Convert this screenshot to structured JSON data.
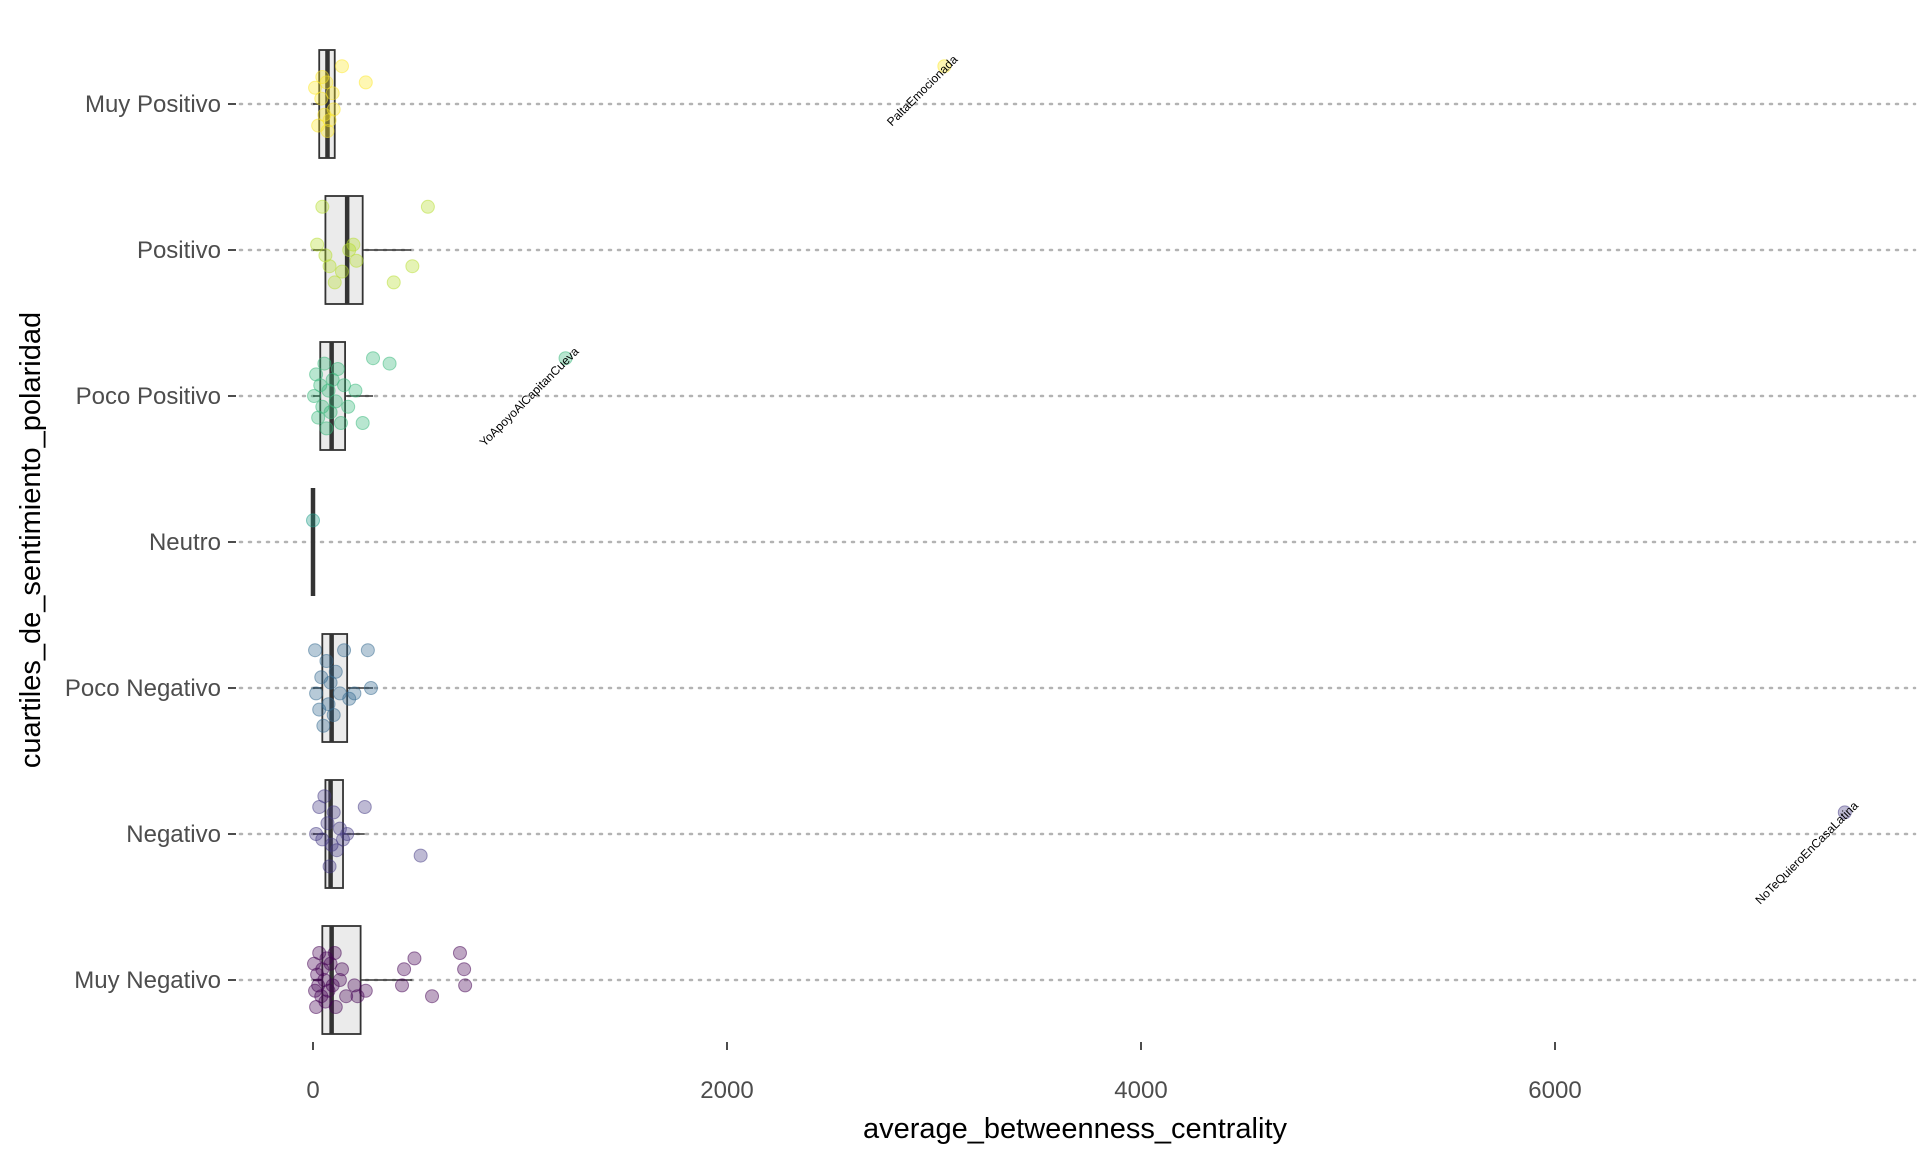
{
  "chart_data": {
    "type": "boxplot-jitter",
    "orientation": "horizontal",
    "xlabel": "average_betweenness_centrality",
    "ylabel": "cuartiles_de_sentimiento_polaridad",
    "xlim": [
      -200,
      7600
    ],
    "x_ticks": [
      0,
      2000,
      4000,
      6000
    ],
    "x_tick_labels": [
      "0",
      "2000",
      "4000",
      "6000"
    ],
    "grid": "dotted horizontal gridlines at each category",
    "legend": "none",
    "categories": [
      "Muy Positivo",
      "Positivo",
      "Poco Positivo",
      "Neutro",
      "Poco Negativo",
      "Negativo",
      "Muy Negativo"
    ],
    "groups": [
      {
        "category": "Muy Positivo",
        "color": "#fde725",
        "box": {
          "q1": 30,
          "median": 70,
          "q3": 105,
          "whisker_low": 0,
          "whisker_high": 110
        },
        "points": [
          {
            "x": 10,
            "j": -0.15
          },
          {
            "x": 25,
            "j": 0.2
          },
          {
            "x": 40,
            "j": -0.05
          },
          {
            "x": 55,
            "j": 0.1
          },
          {
            "x": 65,
            "j": -0.2
          },
          {
            "x": 80,
            "j": 0.15
          },
          {
            "x": 95,
            "j": -0.1
          },
          {
            "x": 100,
            "j": 0.05
          },
          {
            "x": 70,
            "j": 0.25
          },
          {
            "x": 45,
            "j": -0.25
          },
          {
            "x": 140,
            "j": -0.35
          },
          {
            "x": 255,
            "j": -0.2
          },
          {
            "x": 3050,
            "j": -0.35
          }
        ]
      },
      {
        "category": "Positivo",
        "color": "#b5de2b",
        "box": {
          "q1": 60,
          "median": 165,
          "q3": 240,
          "whisker_low": 0,
          "whisker_high": 475
        },
        "points": [
          {
            "x": 20,
            "j": -0.05
          },
          {
            "x": 45,
            "j": -0.4
          },
          {
            "x": 60,
            "j": 0.05
          },
          {
            "x": 80,
            "j": 0.15
          },
          {
            "x": 105,
            "j": 0.3
          },
          {
            "x": 140,
            "j": 0.2
          },
          {
            "x": 175,
            "j": 0.0
          },
          {
            "x": 195,
            "j": -0.05
          },
          {
            "x": 210,
            "j": 0.1
          },
          {
            "x": 390,
            "j": 0.3
          },
          {
            "x": 480,
            "j": 0.15
          },
          {
            "x": 555,
            "j": -0.4
          }
        ]
      },
      {
        "category": "Poco Positivo",
        "color": "#35b779",
        "box": {
          "q1": 35,
          "median": 90,
          "q3": 155,
          "whisker_low": 0,
          "whisker_high": 290
        },
        "points": [
          {
            "x": 5,
            "j": 0.0
          },
          {
            "x": 15,
            "j": -0.2
          },
          {
            "x": 25,
            "j": 0.2
          },
          {
            "x": 35,
            "j": -0.1
          },
          {
            "x": 45,
            "j": 0.1
          },
          {
            "x": 55,
            "j": -0.3
          },
          {
            "x": 65,
            "j": 0.3
          },
          {
            "x": 75,
            "j": -0.05
          },
          {
            "x": 85,
            "j": 0.15
          },
          {
            "x": 95,
            "j": -0.15
          },
          {
            "x": 110,
            "j": 0.05
          },
          {
            "x": 120,
            "j": -0.25
          },
          {
            "x": 135,
            "j": 0.25
          },
          {
            "x": 150,
            "j": -0.1
          },
          {
            "x": 170,
            "j": 0.1
          },
          {
            "x": 205,
            "j": -0.05
          },
          {
            "x": 240,
            "j": 0.25
          },
          {
            "x": 290,
            "j": -0.35
          },
          {
            "x": 370,
            "j": -0.3
          },
          {
            "x": 1220,
            "j": -0.35
          }
        ]
      },
      {
        "category": "Neutro",
        "color": "#1f9e89",
        "box": {
          "q1": 0,
          "median": 0,
          "q3": 0,
          "whisker_low": 0,
          "whisker_high": 0
        },
        "points": [
          {
            "x": 0,
            "j": -0.2
          }
        ]
      },
      {
        "category": "Poco Negativo",
        "color": "#31688e",
        "box": {
          "q1": 45,
          "median": 90,
          "q3": 165,
          "whisker_low": 0,
          "whisker_high": 290
        },
        "points": [
          {
            "x": 10,
            "j": -0.35
          },
          {
            "x": 15,
            "j": 0.05
          },
          {
            "x": 30,
            "j": 0.2
          },
          {
            "x": 40,
            "j": -0.1
          },
          {
            "x": 50,
            "j": 0.35
          },
          {
            "x": 65,
            "j": -0.25
          },
          {
            "x": 75,
            "j": 0.15
          },
          {
            "x": 85,
            "j": -0.05
          },
          {
            "x": 100,
            "j": 0.25
          },
          {
            "x": 110,
            "j": -0.15
          },
          {
            "x": 130,
            "j": 0.05
          },
          {
            "x": 150,
            "j": -0.35
          },
          {
            "x": 175,
            "j": 0.1
          },
          {
            "x": 200,
            "j": 0.05
          },
          {
            "x": 265,
            "j": -0.35
          },
          {
            "x": 280,
            "j": 0.0
          }
        ]
      },
      {
        "category": "Negativo",
        "color": "#443983",
        "box": {
          "q1": 60,
          "median": 85,
          "q3": 145,
          "whisker_low": 0,
          "whisker_high": 250
        },
        "points": [
          {
            "x": 15,
            "j": 0.0
          },
          {
            "x": 30,
            "j": -0.25
          },
          {
            "x": 45,
            "j": 0.05
          },
          {
            "x": 55,
            "j": -0.35
          },
          {
            "x": 70,
            "j": -0.1
          },
          {
            "x": 80,
            "j": 0.3
          },
          {
            "x": 90,
            "j": 0.1
          },
          {
            "x": 100,
            "j": -0.2
          },
          {
            "x": 115,
            "j": 0.15
          },
          {
            "x": 130,
            "j": -0.05
          },
          {
            "x": 145,
            "j": 0.05
          },
          {
            "x": 165,
            "j": 0.0
          },
          {
            "x": 250,
            "j": -0.25
          },
          {
            "x": 520,
            "j": 0.2
          },
          {
            "x": 7400,
            "j": -0.2
          }
        ]
      },
      {
        "category": "Muy Negativo",
        "color": "#440154",
        "box": {
          "q1": 45,
          "median": 90,
          "q3": 230,
          "whisker_low": 0,
          "whisker_high": 480
        },
        "points": [
          {
            "x": 5,
            "j": -0.15
          },
          {
            "x": 10,
            "j": 0.1
          },
          {
            "x": 15,
            "j": 0.25
          },
          {
            "x": 20,
            "j": -0.05
          },
          {
            "x": 25,
            "j": 0.05
          },
          {
            "x": 30,
            "j": -0.25
          },
          {
            "x": 40,
            "j": 0.15
          },
          {
            "x": 45,
            "j": -0.1
          },
          {
            "x": 55,
            "j": 0.0
          },
          {
            "x": 60,
            "j": 0.2
          },
          {
            "x": 65,
            "j": -0.2
          },
          {
            "x": 75,
            "j": 0.1
          },
          {
            "x": 85,
            "j": -0.15
          },
          {
            "x": 95,
            "j": 0.05
          },
          {
            "x": 105,
            "j": -0.25
          },
          {
            "x": 110,
            "j": 0.25
          },
          {
            "x": 130,
            "j": 0.0
          },
          {
            "x": 140,
            "j": -0.1
          },
          {
            "x": 160,
            "j": 0.15
          },
          {
            "x": 200,
            "j": 0.05
          },
          {
            "x": 215,
            "j": 0.15
          },
          {
            "x": 255,
            "j": 0.1
          },
          {
            "x": 430,
            "j": 0.05
          },
          {
            "x": 440,
            "j": -0.1
          },
          {
            "x": 490,
            "j": -0.2
          },
          {
            "x": 575,
            "j": 0.15
          },
          {
            "x": 710,
            "j": -0.25
          },
          {
            "x": 730,
            "j": -0.1
          },
          {
            "x": 735,
            "j": 0.05
          }
        ]
      }
    ],
    "annotations": [
      {
        "text": "PaltaEmocionada",
        "x": 3050,
        "category": "Muy Positivo"
      },
      {
        "text": "YoApoyoAlCapitanCueva",
        "x": 1220,
        "category": "Poco Positivo"
      },
      {
        "text": "NoTeQuieroEnCasaLatina",
        "x": 7400,
        "category": "Negativo"
      }
    ]
  }
}
